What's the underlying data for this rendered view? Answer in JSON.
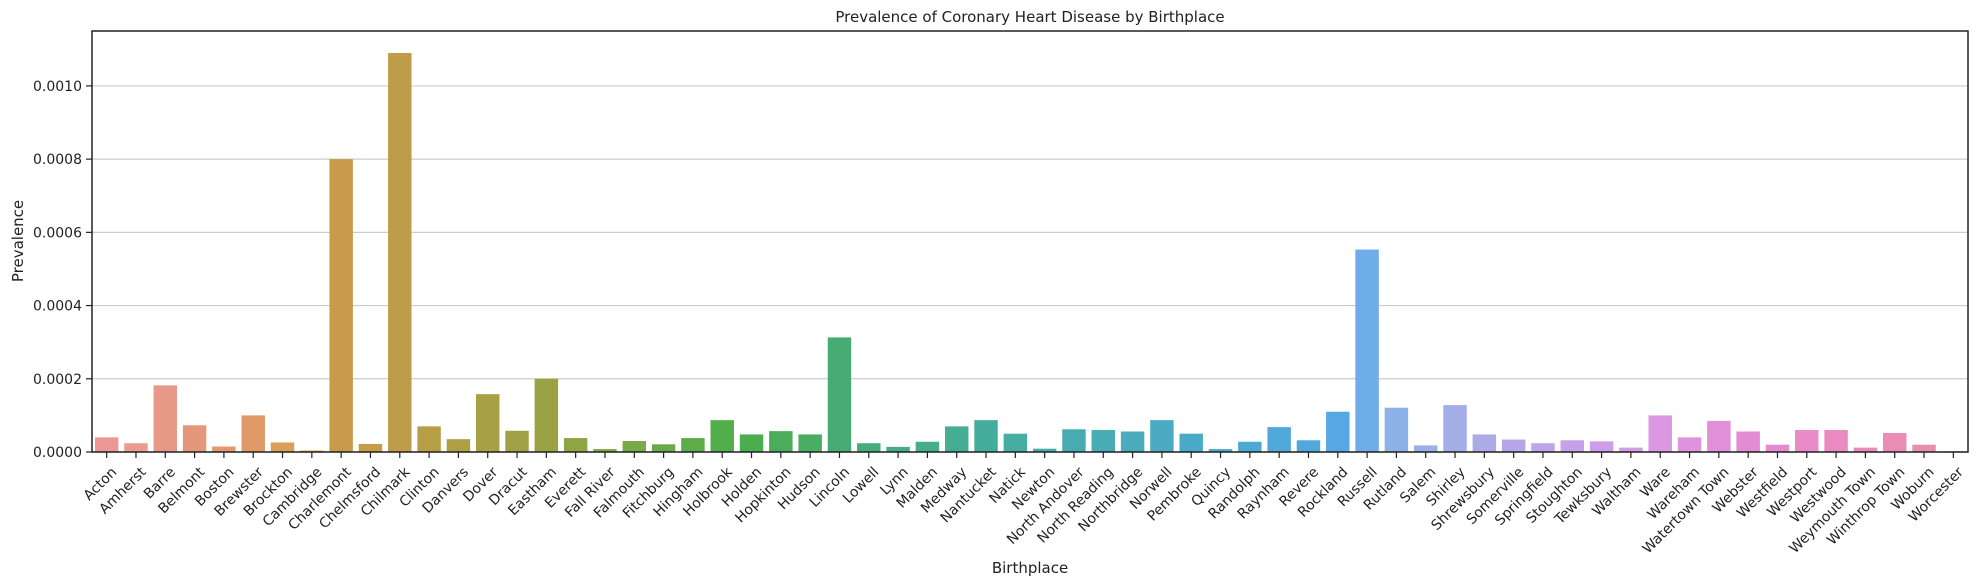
{
  "chart_data": {
    "type": "bar",
    "title": "Prevalence of Coronary Heart Disease by Birthplace",
    "xlabel": "Birthplace",
    "ylabel": "Prevalence",
    "ylim": [
      0,
      0.00115
    ],
    "yticks": [
      0.0,
      0.0002,
      0.0004,
      0.0006,
      0.0008,
      0.001
    ],
    "ytick_labels": [
      "0.0000",
      "0.0002",
      "0.0004",
      "0.0006",
      "0.0008",
      "0.0010"
    ],
    "grid": "y",
    "categories": [
      "Acton",
      "Amherst",
      "Barre",
      "Belmont",
      "Boston",
      "Brewster",
      "Brockton",
      "Cambridge",
      "Charlemont",
      "Chelmsford",
      "Chilmark",
      "Clinton",
      "Danvers",
      "Dover",
      "Dracut",
      "Eastham",
      "Everett",
      "Fall River",
      "Falmouth",
      "Fitchburg",
      "Hingham",
      "Holbrook",
      "Holden",
      "Hopkinton",
      "Hudson",
      "Lincoln",
      "Lowell",
      "Lynn",
      "Malden",
      "Medway",
      "Nantucket",
      "Natick",
      "Newton",
      "North Andover",
      "North Reading",
      "Northbridge",
      "Norwell",
      "Pembroke",
      "Quincy",
      "Randolph",
      "Raynham",
      "Revere",
      "Rockland",
      "Russell",
      "Rutland",
      "Salem",
      "Shirley",
      "Shrewsbury",
      "Somerville",
      "Springfield",
      "Stoughton",
      "Tewksbury",
      "Waltham",
      "Ware",
      "Wareham",
      "Watertown Town",
      "Webster",
      "Westfield",
      "Westport",
      "Westwood",
      "Weymouth Town",
      "Winthrop Town",
      "Woburn",
      "Worcester"
    ],
    "values": [
      4e-05,
      2.4e-05,
      0.000182,
      7.3e-05,
      1.5e-05,
      0.0001,
      2.6e-05,
      4e-06,
      0.0008,
      2.2e-05,
      0.00109,
      7e-05,
      3.5e-05,
      0.000158,
      5.8e-05,
      0.0002,
      3.8e-05,
      8e-06,
      3e-05,
      2.1e-05,
      3.8e-05,
      8.7e-05,
      4.8e-05,
      5.7e-05,
      4.8e-05,
      0.000313,
      2.4e-05,
      1.4e-05,
      2.8e-05,
      7e-05,
      8.7e-05,
      5e-05,
      9e-06,
      6.2e-05,
      6e-05,
      5.6e-05,
      8.7e-05,
      5e-05,
      8e-06,
      2.8e-05,
      6.8e-05,
      3.2e-05,
      0.00011,
      0.000553,
      0.000121,
      1.8e-05,
      0.000128,
      4.8e-05,
      3.4e-05,
      2.4e-05,
      3.2e-05,
      2.9e-05,
      1.2e-05,
      0.0001,
      4e-05,
      8.5e-05,
      5.6e-05,
      2e-05,
      6e-05,
      6e-05,
      1.2e-05,
      5.2e-05,
      2e-05,
      2e-06
    ],
    "colors": [
      "#ea9795",
      "#ea9b92",
      "#e89886",
      "#e5977c",
      "#e3986d",
      "#df9966",
      "#d99e57",
      "#d49f4c",
      "#c89b4a",
      "#c49c4a",
      "#bf9c4a",
      "#b69e47",
      "#b09f45",
      "#a8a044",
      "#a0a145",
      "#9aa243",
      "#8fa544",
      "#82a744",
      "#78aa47",
      "#6aaa48",
      "#5cad4a",
      "#52ad4b",
      "#4bad4e",
      "#4bad59",
      "#49ad63",
      "#47ac73",
      "#46ac7b",
      "#46ad83",
      "#45ad8c",
      "#45ad93",
      "#45ad9b",
      "#45ada2",
      "#46acac",
      "#47acb1",
      "#48acb6",
      "#4aacbc",
      "#4aabc2",
      "#4aabc8",
      "#4babcd",
      "#4caad2",
      "#50a9d8",
      "#52a8dd",
      "#56a7e2",
      "#6facea",
      "#8cb0e8",
      "#99b0e8",
      "#a4ade8",
      "#adaae8",
      "#b5a6e8",
      "#bea4e8",
      "#c6a0e8",
      "#cc9de8",
      "#d49be6",
      "#dc97e3",
      "#df93de",
      "#e28fda",
      "#e38cd6",
      "#e68ad0",
      "#e88bc8",
      "#e98bc2",
      "#e98bbb",
      "#e98db5",
      "#e98fae",
      "#e991a8"
    ]
  }
}
